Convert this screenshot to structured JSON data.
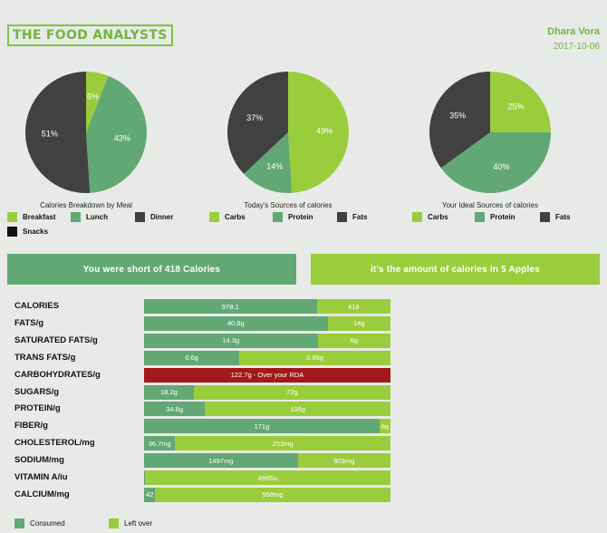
{
  "header": {
    "logo_text": "THE FOOD ANALYSTS",
    "user_name": "Dhara Vora",
    "date": "2017-10-06"
  },
  "colors": {
    "light_green": "#9acd3c",
    "medium_green": "#62a874",
    "dark_gray": "#414141",
    "over_red": "#a31818",
    "brand_green": "#6fb83a"
  },
  "pies": [
    {
      "title": "Calories Breakdown by Meal",
      "chart_data": {
        "type": "pie",
        "slices": [
          {
            "name": "Breakfast",
            "value": 6,
            "label": "6%"
          },
          {
            "name": "Lunch",
            "value": 43,
            "label": "43%"
          },
          {
            "name": "Snacks",
            "value": 0,
            "label": ""
          },
          {
            "name": "Dinner",
            "value": 51,
            "label": "51%"
          }
        ]
      }
    },
    {
      "title": "Today's Sources of calories",
      "chart_data": {
        "type": "pie",
        "slices": [
          {
            "name": "Carbs",
            "value": 49,
            "label": "49%"
          },
          {
            "name": "Protein",
            "value": 14,
            "label": "14%"
          },
          {
            "name": "Fats",
            "value": 37,
            "label": "37%"
          }
        ]
      }
    },
    {
      "title": "Your Ideal Sources of calories",
      "chart_data": {
        "type": "pie",
        "slices": [
          {
            "name": "Carbs",
            "value": 25,
            "label": "25%"
          },
          {
            "name": "Protein",
            "value": 40,
            "label": "40%"
          },
          {
            "name": "Fats",
            "value": 35,
            "label": "35%"
          }
        ]
      }
    }
  ],
  "legends": {
    "meal": [
      "Breakfast",
      "Lunch",
      "Dinner",
      "Snacks"
    ],
    "today": [
      "Carbs",
      "Protein",
      "Fats"
    ],
    "ideal": [
      "Carbs",
      "Protein",
      "Fats"
    ]
  },
  "banners": {
    "short": "You were short of 418 Calories",
    "apples": "it's the amount of calories in 5 Apples"
  },
  "chart_data": {
    "type": "bar",
    "stacked": true,
    "orientation": "horizontal",
    "categories": [
      "CALORIES",
      "FATS/g",
      "SATURATED FATS/g",
      "TRANS FATS/g",
      "CARBOHYDRATES/g",
      "SUGARS/g",
      "PROTEIN/g",
      "FIBER/g",
      "CHOLESTEROL/mg",
      "SODIUM/mg",
      "VITAMIN A/iu",
      "CALCIUM/mg"
    ],
    "series": [
      {
        "name": "Consumed",
        "values": [
          978.1,
          40.8,
          14.3,
          0.6,
          122.7,
          18.2,
          34.8,
          171,
          36.7,
          1497,
          0,
          42
        ]
      },
      {
        "name": "Left over",
        "values": [
          418,
          14,
          6,
          0.95,
          0,
          72,
          106,
          8,
          253,
          903,
          4965,
          958
        ]
      }
    ],
    "value_labels": [
      [
        "978.1",
        "418"
      ],
      [
        "40.8g",
        "14g"
      ],
      [
        "14.3g",
        "6g"
      ],
      [
        "0.6g",
        "0.95g"
      ],
      [
        "122.7g - Over your RDA",
        ""
      ],
      [
        "18.2g",
        "72g"
      ],
      [
        "34.8g",
        "106g"
      ],
      [
        "171g",
        "8g"
      ],
      [
        "36.7mg",
        "253mg"
      ],
      [
        "1497mg",
        "903mg"
      ],
      [
        "",
        "4965iu"
      ],
      [
        "42",
        "958mg"
      ]
    ],
    "over_rda": [
      false,
      false,
      false,
      false,
      true,
      false,
      false,
      false,
      false,
      false,
      false,
      false
    ],
    "legend": [
      "Consumed",
      "Left over"
    ],
    "legend_position": "bottom-left"
  }
}
